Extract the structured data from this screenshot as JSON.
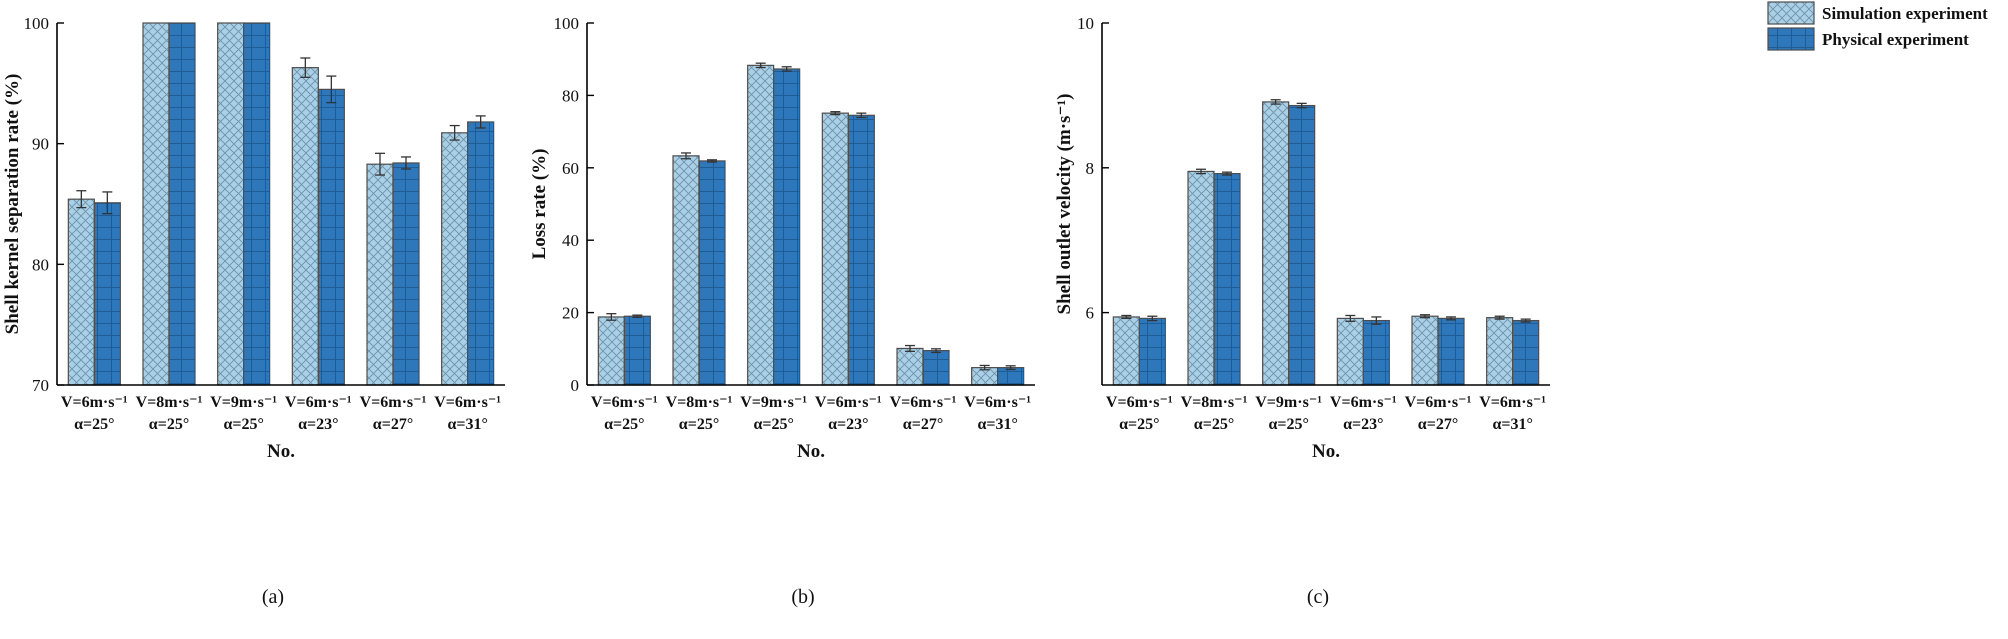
{
  "colors": {
    "simulation": "#a9d0e6",
    "physical": "#2e77bb",
    "bar_edge": "#4d4d4d",
    "axis": "#000000"
  },
  "legend": {
    "simulation_label": "Simulation experiment",
    "physical_label": "Physical experiment"
  },
  "chart_data": [
    {
      "type": "bar",
      "panel_label": "(a)",
      "ylabel": "Shell kernel separation rate (%)",
      "xlabel": "No.",
      "ylim": [
        70,
        100
      ],
      "yticks": [
        70,
        80,
        90,
        100
      ],
      "categories": [
        [
          "V=6m·s⁻¹",
          "α=25°"
        ],
        [
          "V=8m·s⁻¹",
          "α=25°"
        ],
        [
          "V=9m·s⁻¹",
          "α=25°"
        ],
        [
          "V=6m·s⁻¹",
          "α=23°"
        ],
        [
          "V=6m·s⁻¹",
          "α=27°"
        ],
        [
          "V=6m·s⁻¹",
          "α=31°"
        ]
      ],
      "series": [
        {
          "name": "Simulation experiment",
          "values": [
            85.4,
            100,
            100,
            96.3,
            88.3,
            90.9
          ],
          "errors": [
            0.7,
            0,
            0,
            0.8,
            0.9,
            0.6
          ]
        },
        {
          "name": "Physical experiment",
          "values": [
            85.1,
            100,
            100,
            94.5,
            88.4,
            91.8
          ],
          "errors": [
            0.9,
            0,
            0,
            1.1,
            0.5,
            0.5
          ]
        }
      ]
    },
    {
      "type": "bar",
      "panel_label": "(b)",
      "ylabel": "Loss rate (%)",
      "xlabel": "No.",
      "ylim": [
        0,
        100
      ],
      "yticks": [
        0,
        20,
        40,
        60,
        80,
        100
      ],
      "categories": [
        [
          "V=6m·s⁻¹",
          "α=25°"
        ],
        [
          "V=8m·s⁻¹",
          "α=25°"
        ],
        [
          "V=9m·s⁻¹",
          "α=25°"
        ],
        [
          "V=6m·s⁻¹",
          "α=23°"
        ],
        [
          "V=6m·s⁻¹",
          "α=27°"
        ],
        [
          "V=6m·s⁻¹",
          "α=31°"
        ]
      ],
      "series": [
        {
          "name": "Simulation experiment",
          "values": [
            18.8,
            63.3,
            88.3,
            75.1,
            10.1,
            4.8
          ],
          "errors": [
            0.9,
            0.8,
            0.6,
            0.4,
            0.8,
            0.6
          ]
        },
        {
          "name": "Physical experiment",
          "values": [
            19.0,
            61.9,
            87.3,
            74.5,
            9.5,
            4.8
          ],
          "errors": [
            0.3,
            0.3,
            0.6,
            0.6,
            0.5,
            0.5
          ]
        }
      ]
    },
    {
      "type": "bar",
      "panel_label": "(c)",
      "ylabel": "Shell outlet velocity (m·s⁻¹)",
      "xlabel": "No.",
      "ylim": [
        5,
        10
      ],
      "yticks": [
        6,
        8,
        10
      ],
      "categories": [
        [
          "V=6m·s⁻¹",
          "α=25°"
        ],
        [
          "V=8m·s⁻¹",
          "α=25°"
        ],
        [
          "V=9m·s⁻¹",
          "α=25°"
        ],
        [
          "V=6m·s⁻¹",
          "α=23°"
        ],
        [
          "V=6m·s⁻¹",
          "α=27°"
        ],
        [
          "V=6m·s⁻¹",
          "α=31°"
        ]
      ],
      "series": [
        {
          "name": "Simulation experiment",
          "values": [
            5.94,
            7.95,
            8.91,
            5.92,
            5.95,
            5.93
          ],
          "errors": [
            0.02,
            0.03,
            0.03,
            0.04,
            0.02,
            0.02
          ]
        },
        {
          "name": "Physical experiment",
          "values": [
            5.92,
            7.92,
            8.86,
            5.89,
            5.92,
            5.89
          ],
          "errors": [
            0.03,
            0.02,
            0.03,
            0.05,
            0.02,
            0.02
          ]
        }
      ]
    }
  ]
}
